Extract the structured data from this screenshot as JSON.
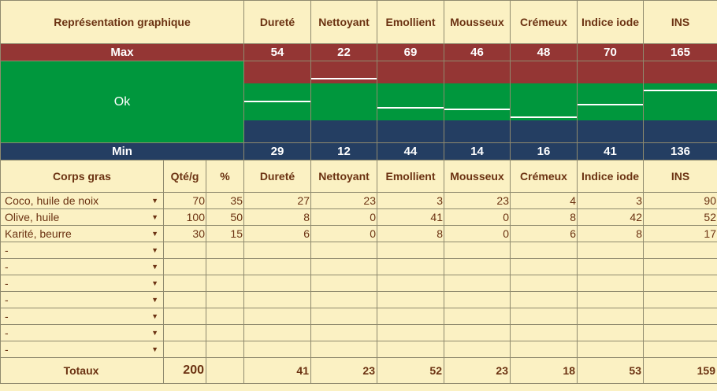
{
  "header": {
    "graph_label": "Représentation graphique",
    "columns": [
      "Dureté",
      "Nettoyant",
      "Emollient",
      "Mousseux",
      "Crémeux",
      "Indice iode",
      "INS"
    ]
  },
  "max_row": {
    "label": "Max",
    "values": [
      "54",
      "22",
      "69",
      "46",
      "48",
      "70",
      "165"
    ]
  },
  "min_row": {
    "label": "Min",
    "values": [
      "29",
      "12",
      "44",
      "14",
      "16",
      "41",
      "136"
    ]
  },
  "ok_label": "Ok",
  "bars": [
    {
      "max": 54,
      "min": 29,
      "value": 41
    },
    {
      "max": 22,
      "min": 12,
      "value": 23
    },
    {
      "max": 69,
      "min": 44,
      "value": 52
    },
    {
      "max": 46,
      "min": 14,
      "value": 23
    },
    {
      "max": 48,
      "min": 16,
      "value": 18
    },
    {
      "max": 70,
      "min": 41,
      "value": 53
    },
    {
      "max": 165,
      "min": 136,
      "value": 159
    }
  ],
  "table_header": {
    "corps_gras": "Corps gras",
    "qte": "Qté/g",
    "pct": "%",
    "columns": [
      "Dureté",
      "Nettoyant",
      "Emollient",
      "Mousseux",
      "Crémeux",
      "Indice iode",
      "INS"
    ]
  },
  "rows": [
    {
      "name": "Coco, huile de noix",
      "qte": "70",
      "pct": "35",
      "vals": [
        "27",
        "23",
        "3",
        "23",
        "4",
        "3",
        "90"
      ]
    },
    {
      "name": "Olive, huile",
      "qte": "100",
      "pct": "50",
      "vals": [
        "8",
        "0",
        "41",
        "0",
        "8",
        "42",
        "52"
      ]
    },
    {
      "name": "Karité, beurre",
      "qte": "30",
      "pct": "15",
      "vals": [
        "6",
        "0",
        "8",
        "0",
        "6",
        "8",
        "17"
      ]
    },
    {
      "name": "-",
      "qte": "",
      "pct": "",
      "vals": [
        "",
        "",
        "",
        "",
        "",
        "",
        ""
      ]
    },
    {
      "name": "-",
      "qte": "",
      "pct": "",
      "vals": [
        "",
        "",
        "",
        "",
        "",
        "",
        ""
      ]
    },
    {
      "name": "-",
      "qte": "",
      "pct": "",
      "vals": [
        "",
        "",
        "",
        "",
        "",
        "",
        ""
      ]
    },
    {
      "name": "-",
      "qte": "",
      "pct": "",
      "vals": [
        "",
        "",
        "",
        "",
        "",
        "",
        ""
      ]
    },
    {
      "name": "-",
      "qte": "",
      "pct": "",
      "vals": [
        "",
        "",
        "",
        "",
        "",
        "",
        ""
      ]
    },
    {
      "name": "-",
      "qte": "",
      "pct": "",
      "vals": [
        "",
        "",
        "",
        "",
        "",
        "",
        ""
      ]
    },
    {
      "name": "-",
      "qte": "",
      "pct": "",
      "vals": [
        "",
        "",
        "",
        "",
        "",
        "",
        ""
      ]
    }
  ],
  "totals": {
    "label": "Totaux",
    "qte": "200",
    "vals": [
      "41",
      "23",
      "52",
      "23",
      "18",
      "53",
      "159"
    ]
  },
  "colors": {
    "max": "#943634",
    "ok": "#00973d",
    "min": "#243e62",
    "background": "#fbf1c3",
    "text": "#6b3212"
  }
}
